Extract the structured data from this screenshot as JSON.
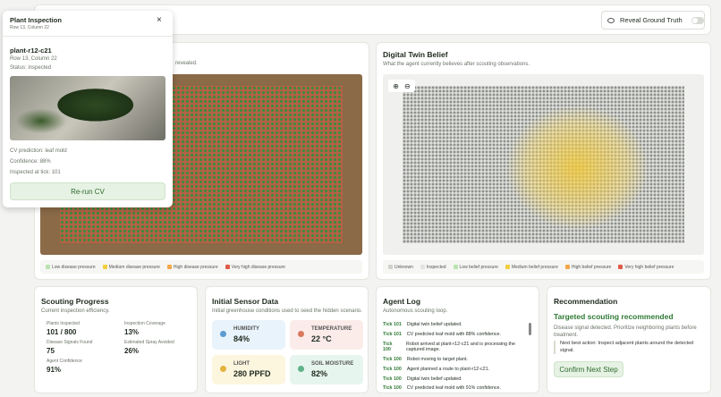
{
  "popup": {
    "title": "Plant Inspection",
    "subtitle": "Row 13, Column 22",
    "plant_id": "plant-r12-c21",
    "location": "Row 13, Column 22",
    "status": "Status: inspected",
    "prediction": "CV prediction: leaf mold",
    "confidence": "Confidence: 88%",
    "tick": "Inspected at tick: 101",
    "button": "Re-run CV"
  },
  "toolbar": {
    "reveal": "Reveal Ground Truth"
  },
  "ground_truth": {
    "subtitle_fragment": "revealed.",
    "legend": [
      "Low disease pressure",
      "Medium disease pressure",
      "High disease pressure",
      "Very high disease pressure"
    ]
  },
  "belief": {
    "title": "Digital Twin Belief",
    "subtitle": "What the agent currently believes after scouting observations.",
    "legend": [
      "Unknown",
      "Inspected",
      "Low belief pressure",
      "Medium belief pressure",
      "High belief pressure",
      "Very high belief pressure"
    ]
  },
  "progress": {
    "title": "Scouting Progress",
    "subtitle": "Current inspection efficiency.",
    "stats": [
      {
        "label": "Plants Inspected",
        "value": "101 / 800"
      },
      {
        "label": "Inspection Coverage",
        "value": "13%"
      },
      {
        "label": "Disease Signals Found",
        "value": "75"
      },
      {
        "label": "Estimated Spray Avoided",
        "value": "26%"
      },
      {
        "label": "Agent Confidence",
        "value": "91%"
      }
    ]
  },
  "sensors": {
    "title": "Initial Sensor Data",
    "subtitle": "Initial greenhouse conditions used to seed the hidden scenario.",
    "items": [
      {
        "label": "HUMIDITY",
        "value": "84%"
      },
      {
        "label": "TEMPERATURE",
        "value": "22 °C"
      },
      {
        "label": "LIGHT",
        "value": "280 PPFD"
      },
      {
        "label": "SOIL MOISTURE",
        "value": "82%"
      }
    ]
  },
  "log": {
    "title": "Agent Log",
    "subtitle": "Autonomous scouting loop.",
    "entries": [
      {
        "tick": "Tick 101",
        "text": "Digital twin belief updated."
      },
      {
        "tick": "Tick 101",
        "text": "CV predicted leaf mold with 88% confidence."
      },
      {
        "tick": "Tick 100",
        "text": "Robot arrived at plant-r12-c21 and is processing the captured image."
      },
      {
        "tick": "Tick 100",
        "text": "Robot moving to target plant."
      },
      {
        "tick": "Tick 100",
        "text": "Agent planned a route to plant-r12-c21."
      },
      {
        "tick": "Tick 100",
        "text": "Digital twin belief updated."
      },
      {
        "tick": "Tick 100",
        "text": "CV predicted leaf mold with 91% confidence."
      }
    ]
  },
  "recommendation": {
    "title": "Recommendation",
    "headline": "Targeted scouting recommended",
    "detail": "Disease signal detected. Prioritize neighboring plants before treatment.",
    "next_action": "Next best action: Inspect adjacent plants around the detected signal.",
    "button": "Confirm Next Step"
  }
}
